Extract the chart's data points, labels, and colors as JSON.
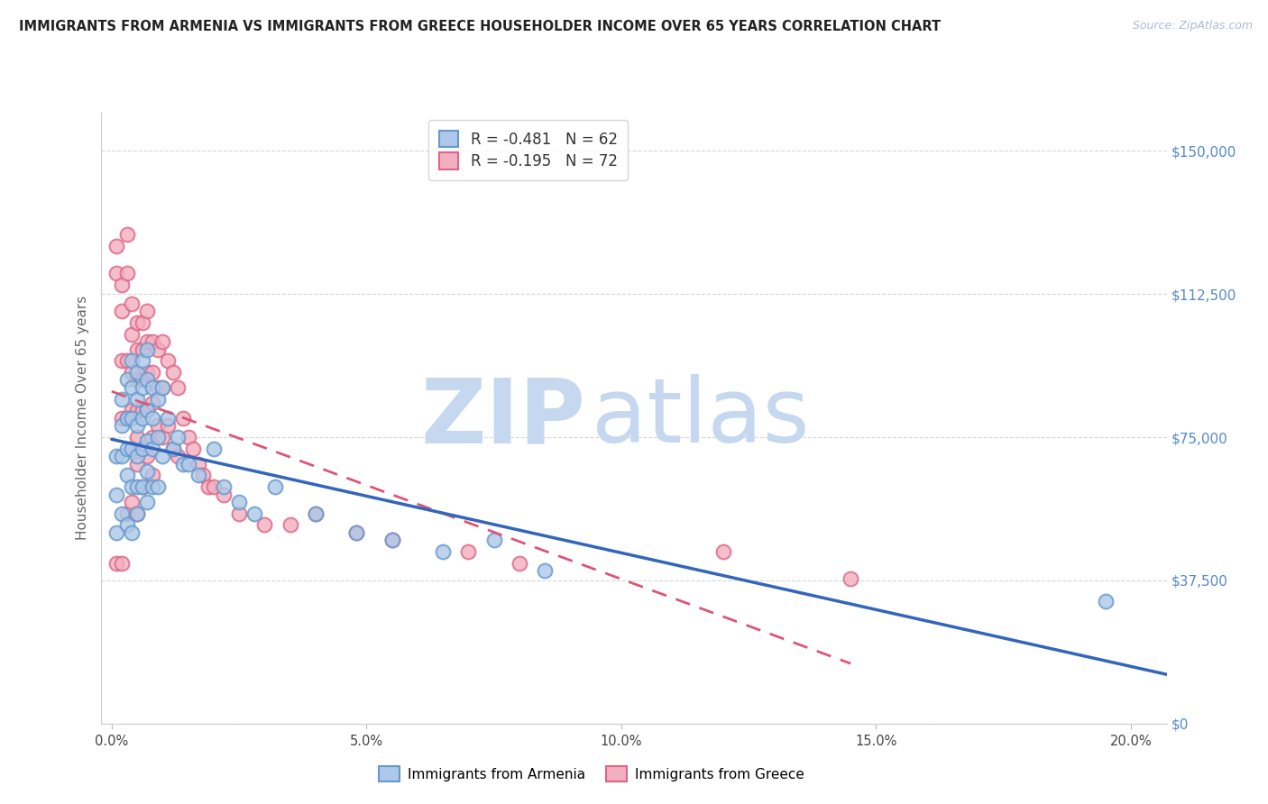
{
  "title": "IMMIGRANTS FROM ARMENIA VS IMMIGRANTS FROM GREECE HOUSEHOLDER INCOME OVER 65 YEARS CORRELATION CHART",
  "source": "Source: ZipAtlas.com",
  "ylabel": "Householder Income Over 65 years",
  "xtick_labels": [
    "0.0%",
    "5.0%",
    "10.0%",
    "15.0%",
    "20.0%"
  ],
  "xtick_vals": [
    0.0,
    0.05,
    0.1,
    0.15,
    0.2
  ],
  "ytick_labels": [
    "$0",
    "$37,500",
    "$75,000",
    "$112,500",
    "$150,000"
  ],
  "ytick_vals": [
    0,
    37500,
    75000,
    112500,
    150000
  ],
  "ylim": [
    0,
    160000
  ],
  "xlim": [
    -0.002,
    0.207
  ],
  "armenia_fill": "#adc8e8",
  "armenia_edge": "#6699cc",
  "greece_fill": "#f2afbf",
  "greece_edge": "#dd6688",
  "armenia_line_color": "#3366bb",
  "greece_line_color": "#dd5577",
  "legend_armenia_R": "-0.481",
  "legend_armenia_N": "62",
  "legend_greece_R": "-0.195",
  "legend_greece_N": "72",
  "watermark_ZIP": "ZIP",
  "watermark_atlas": "atlas",
  "watermark_color": "#c5d8f0",
  "grid_color": "#d5d5d5",
  "right_axis_color": "#5588cc",
  "title_fontsize": 10.5,
  "source_fontsize": 9,
  "armenia_x": [
    0.001,
    0.001,
    0.001,
    0.002,
    0.002,
    0.002,
    0.002,
    0.003,
    0.003,
    0.003,
    0.003,
    0.003,
    0.004,
    0.004,
    0.004,
    0.004,
    0.004,
    0.004,
    0.005,
    0.005,
    0.005,
    0.005,
    0.005,
    0.005,
    0.006,
    0.006,
    0.006,
    0.006,
    0.006,
    0.007,
    0.007,
    0.007,
    0.007,
    0.007,
    0.007,
    0.008,
    0.008,
    0.008,
    0.008,
    0.009,
    0.009,
    0.009,
    0.01,
    0.01,
    0.011,
    0.012,
    0.013,
    0.014,
    0.015,
    0.017,
    0.02,
    0.022,
    0.025,
    0.028,
    0.032,
    0.04,
    0.048,
    0.055,
    0.065,
    0.075,
    0.085,
    0.195
  ],
  "armenia_y": [
    70000,
    60000,
    50000,
    85000,
    78000,
    70000,
    55000,
    90000,
    80000,
    72000,
    65000,
    52000,
    95000,
    88000,
    80000,
    72000,
    62000,
    50000,
    92000,
    85000,
    78000,
    70000,
    62000,
    55000,
    95000,
    88000,
    80000,
    72000,
    62000,
    98000,
    90000,
    82000,
    74000,
    66000,
    58000,
    88000,
    80000,
    72000,
    62000,
    85000,
    75000,
    62000,
    88000,
    70000,
    80000,
    72000,
    75000,
    68000,
    68000,
    65000,
    72000,
    62000,
    58000,
    55000,
    62000,
    55000,
    50000,
    48000,
    45000,
    48000,
    40000,
    32000
  ],
  "greece_x": [
    0.001,
    0.001,
    0.001,
    0.002,
    0.002,
    0.002,
    0.002,
    0.002,
    0.003,
    0.003,
    0.003,
    0.003,
    0.003,
    0.004,
    0.004,
    0.004,
    0.004,
    0.004,
    0.004,
    0.005,
    0.005,
    0.005,
    0.005,
    0.005,
    0.005,
    0.005,
    0.006,
    0.006,
    0.006,
    0.006,
    0.006,
    0.006,
    0.007,
    0.007,
    0.007,
    0.007,
    0.007,
    0.008,
    0.008,
    0.008,
    0.008,
    0.008,
    0.009,
    0.009,
    0.009,
    0.01,
    0.01,
    0.01,
    0.011,
    0.011,
    0.012,
    0.012,
    0.013,
    0.013,
    0.014,
    0.015,
    0.016,
    0.017,
    0.018,
    0.019,
    0.02,
    0.022,
    0.025,
    0.03,
    0.035,
    0.04,
    0.048,
    0.055,
    0.07,
    0.08,
    0.12,
    0.145
  ],
  "greece_y": [
    125000,
    118000,
    42000,
    115000,
    108000,
    95000,
    80000,
    42000,
    128000,
    118000,
    95000,
    80000,
    55000,
    110000,
    102000,
    92000,
    82000,
    72000,
    58000,
    105000,
    98000,
    90000,
    82000,
    75000,
    68000,
    55000,
    105000,
    98000,
    90000,
    82000,
    72000,
    62000,
    108000,
    100000,
    92000,
    82000,
    70000,
    100000,
    92000,
    84000,
    75000,
    65000,
    98000,
    88000,
    78000,
    100000,
    88000,
    75000,
    95000,
    78000,
    92000,
    72000,
    88000,
    70000,
    80000,
    75000,
    72000,
    68000,
    65000,
    62000,
    62000,
    60000,
    55000,
    52000,
    52000,
    55000,
    50000,
    48000,
    45000,
    42000,
    45000,
    38000
  ]
}
